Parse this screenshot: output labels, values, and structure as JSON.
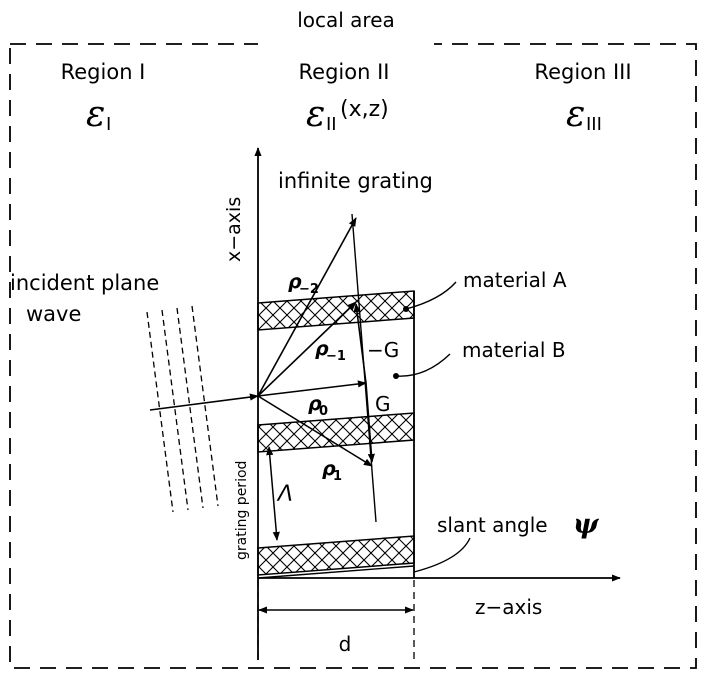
{
  "frame": {
    "title": "local area"
  },
  "regions": [
    {
      "name": "Region I",
      "symbol": "ε",
      "subscript": "I",
      "suffix": ""
    },
    {
      "name": "Region II",
      "symbol": "ε",
      "subscript": "II",
      "suffix": "(x,z)"
    },
    {
      "name": "Region III",
      "symbol": "ε",
      "subscript": "III",
      "suffix": ""
    }
  ],
  "axes": {
    "x": "x−axis",
    "z": "z−axis"
  },
  "labels": {
    "infinite_grating": "infinite grating",
    "material_a": "material A",
    "material_b": "material B",
    "incident_line1": "incident plane",
    "incident_line2": "wave",
    "grating_period": "grating period",
    "lambda": "Λ",
    "slant_angle": "slant angle",
    "psi": "ψ",
    "d": "d",
    "minus_g": "−G",
    "g": "G"
  },
  "orders": [
    {
      "symbol": "ρ",
      "sub": "−2"
    },
    {
      "symbol": "ρ",
      "sub": "−1"
    },
    {
      "symbol": "ρ",
      "sub": "0"
    },
    {
      "symbol": "ρ",
      "sub": "1"
    }
  ]
}
